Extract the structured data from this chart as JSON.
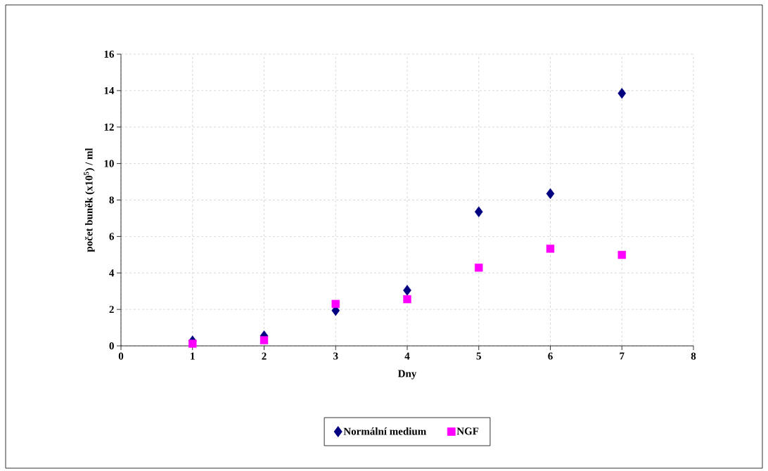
{
  "chart_data": {
    "type": "scatter",
    "xlabel": "Dny",
    "ylabel": "počet buněk (x10$^{5}$) / ml",
    "x": [
      1,
      2,
      3,
      4,
      5,
      6,
      7
    ],
    "series": [
      {
        "name": "Normální medium",
        "color": "#000080",
        "marker": "diamond",
        "values": [
          0.27,
          0.55,
          1.94,
          3.05,
          7.35,
          8.35,
          13.85
        ]
      },
      {
        "name": "NGF",
        "color": "#ff00ff",
        "marker": "square",
        "values": [
          0.12,
          0.31,
          2.3,
          2.56,
          4.29,
          5.33,
          4.99
        ]
      }
    ],
    "xlim": [
      0,
      8
    ],
    "xticks": [
      0,
      1,
      2,
      3,
      4,
      5,
      6,
      7,
      8
    ],
    "ylim": [
      0,
      16
    ],
    "yticks": [
      0,
      2,
      4,
      6,
      8,
      10,
      12,
      14,
      16
    ],
    "grid": true,
    "legend": "bottom"
  }
}
